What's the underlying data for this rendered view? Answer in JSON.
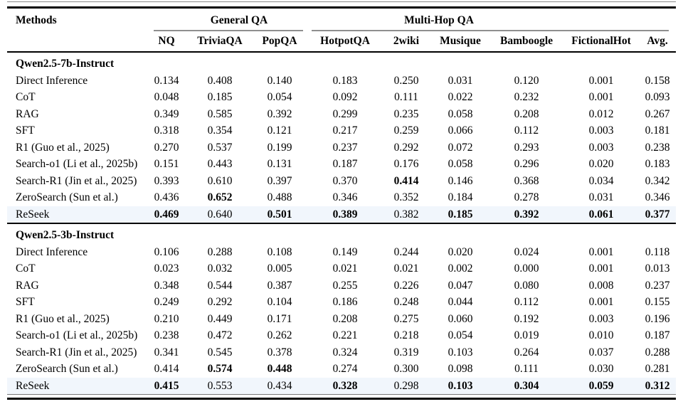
{
  "table": {
    "highlight_color": "#f1f6fc",
    "header": {
      "methods_label": "Methods",
      "groups": [
        {
          "label": "General QA",
          "span": 3
        },
        {
          "label": "Multi-Hop QA",
          "span": 6
        }
      ],
      "columns": [
        "NQ",
        "TriviaQA",
        "PopQA",
        "HotpotQA",
        "2wiki",
        "Musique",
        "Bamboogle",
        "FictionalHot",
        "Avg."
      ]
    },
    "sections": [
      {
        "title": "Qwen2.5-7b-Instruct",
        "rows": [
          {
            "method": "Direct Inference",
            "values": [
              "0.134",
              "0.408",
              "0.140",
              "0.183",
              "0.250",
              "0.031",
              "0.120",
              "0.001",
              "0.158"
            ],
            "bold": [],
            "highlight": false
          },
          {
            "method": "CoT",
            "values": [
              "0.048",
              "0.185",
              "0.054",
              "0.092",
              "0.111",
              "0.022",
              "0.232",
              "0.001",
              "0.093"
            ],
            "bold": [],
            "highlight": false
          },
          {
            "method": "RAG",
            "values": [
              "0.349",
              "0.585",
              "0.392",
              "0.299",
              "0.235",
              "0.058",
              "0.208",
              "0.012",
              "0.267"
            ],
            "bold": [],
            "highlight": false
          },
          {
            "method": "SFT",
            "values": [
              "0.318",
              "0.354",
              "0.121",
              "0.217",
              "0.259",
              "0.066",
              "0.112",
              "0.003",
              "0.181"
            ],
            "bold": [],
            "highlight": false
          },
          {
            "method": "R1 (Guo et al., 2025)",
            "values": [
              "0.270",
              "0.537",
              "0.199",
              "0.237",
              "0.292",
              "0.072",
              "0.293",
              "0.003",
              "0.238"
            ],
            "bold": [],
            "highlight": false
          },
          {
            "method": "Search-o1 (Li et al., 2025b)",
            "values": [
              "0.151",
              "0.443",
              "0.131",
              "0.187",
              "0.176",
              "0.058",
              "0.296",
              "0.020",
              "0.183"
            ],
            "bold": [],
            "highlight": false
          },
          {
            "method": "Search-R1 (Jin et al., 2025)",
            "values": [
              "0.393",
              "0.610",
              "0.397",
              "0.370",
              "0.414",
              "0.146",
              "0.368",
              "0.034",
              "0.342"
            ],
            "bold": [
              4
            ],
            "highlight": false
          },
          {
            "method": "ZeroSearch (Sun et al.)",
            "values": [
              "0.436",
              "0.652",
              "0.488",
              "0.346",
              "0.352",
              "0.184",
              "0.278",
              "0.031",
              "0.346"
            ],
            "bold": [
              1
            ],
            "highlight": false
          },
          {
            "method": "ReSeek",
            "values": [
              "0.469",
              "0.640",
              "0.501",
              "0.389",
              "0.382",
              "0.185",
              "0.392",
              "0.061",
              "0.377"
            ],
            "bold": [
              0,
              2,
              3,
              5,
              6,
              7,
              8
            ],
            "highlight": true
          }
        ]
      },
      {
        "title": "Qwen2.5-3b-Instruct",
        "rows": [
          {
            "method": "Direct Inference",
            "values": [
              "0.106",
              "0.288",
              "0.108",
              "0.149",
              "0.244",
              "0.020",
              "0.024",
              "0.001",
              "0.118"
            ],
            "bold": [],
            "highlight": false
          },
          {
            "method": "CoT",
            "values": [
              "0.023",
              "0.032",
              "0.005",
              "0.021",
              "0.021",
              "0.002",
              "0.000",
              "0.001",
              "0.013"
            ],
            "bold": [],
            "highlight": false
          },
          {
            "method": "RAG",
            "values": [
              "0.348",
              "0.544",
              "0.387",
              "0.255",
              "0.226",
              "0.047",
              "0.080",
              "0.008",
              "0.237"
            ],
            "bold": [],
            "highlight": false
          },
          {
            "method": "SFT",
            "values": [
              "0.249",
              "0.292",
              "0.104",
              "0.186",
              "0.248",
              "0.044",
              "0.112",
              "0.001",
              "0.155"
            ],
            "bold": [],
            "highlight": false
          },
          {
            "method": "R1 (Guo et al., 2025)",
            "values": [
              "0.210",
              "0.449",
              "0.171",
              "0.208",
              "0.275",
              "0.060",
              "0.192",
              "0.003",
              "0.196"
            ],
            "bold": [],
            "highlight": false
          },
          {
            "method": "Search-o1 (Li et al., 2025b)",
            "values": [
              "0.238",
              "0.472",
              "0.262",
              "0.221",
              "0.218",
              "0.054",
              "0.019",
              "0.010",
              "0.187"
            ],
            "bold": [],
            "highlight": false
          },
          {
            "method": "Search-R1 (Jin et al., 2025)",
            "values": [
              "0.341",
              "0.545",
              "0.378",
              "0.324",
              "0.319",
              "0.103",
              "0.264",
              "0.037",
              "0.288"
            ],
            "bold": [],
            "highlight": false
          },
          {
            "method": "ZeroSearch (Sun et al.)",
            "values": [
              "0.414",
              "0.574",
              "0.448",
              "0.274",
              "0.300",
              "0.098",
              "0.111",
              "0.030",
              "0.281"
            ],
            "bold": [
              1,
              2
            ],
            "highlight": false
          },
          {
            "method": "ReSeek",
            "values": [
              "0.415",
              "0.553",
              "0.434",
              "0.328",
              "0.298",
              "0.103",
              "0.304",
              "0.059",
              "0.312"
            ],
            "bold": [
              0,
              3,
              5,
              6,
              7,
              8
            ],
            "highlight": true
          }
        ]
      }
    ]
  }
}
